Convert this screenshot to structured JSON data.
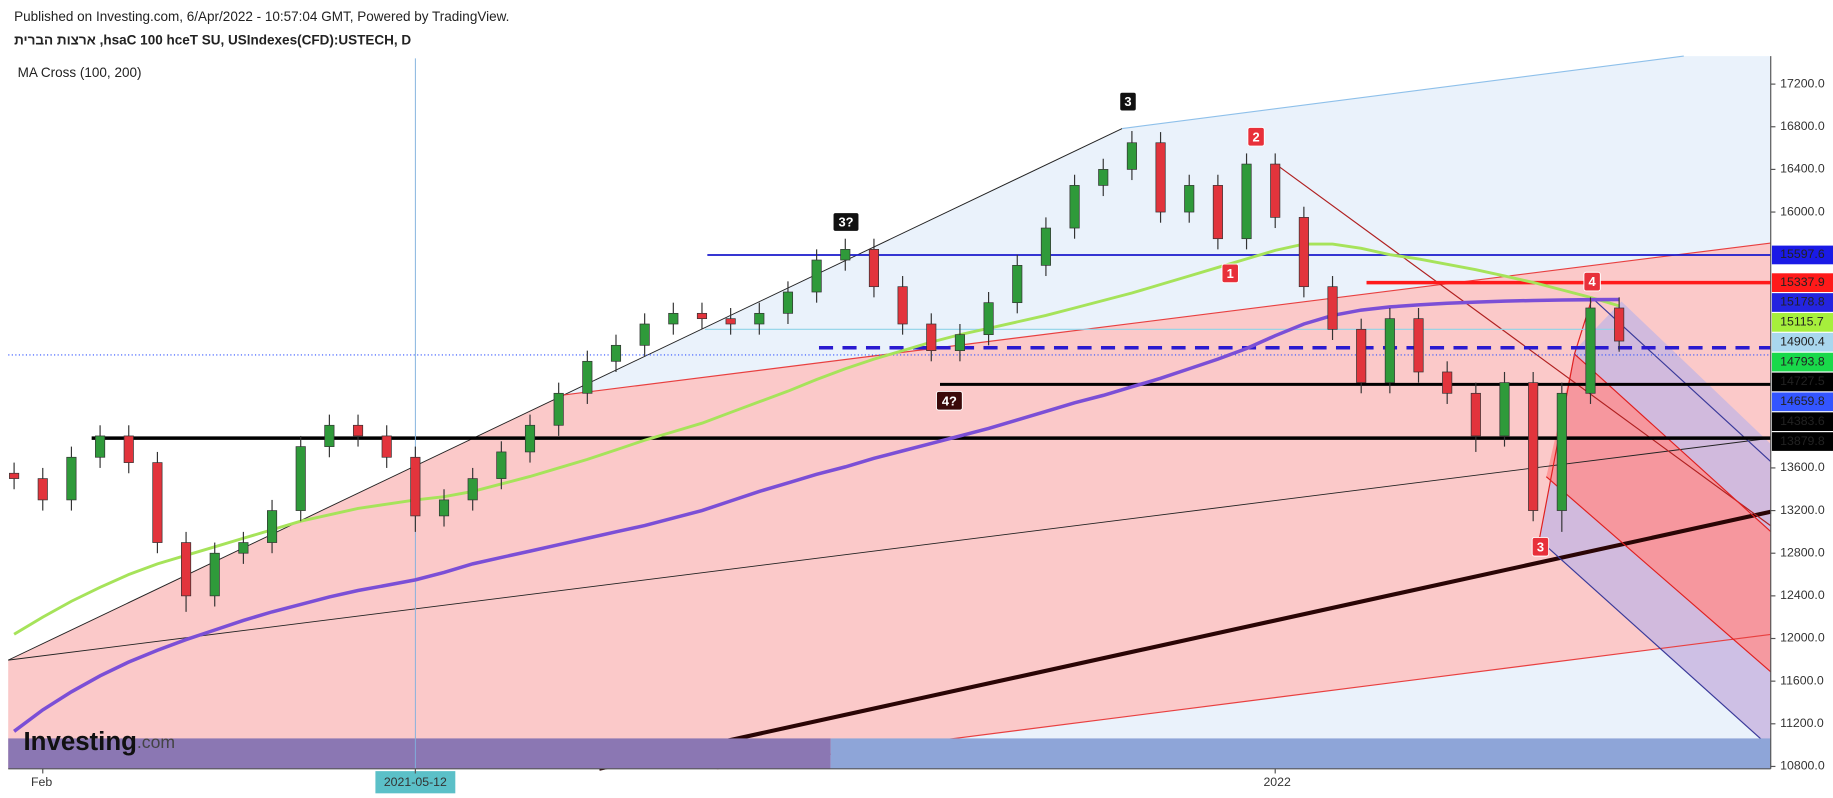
{
  "header": {
    "published": "Published on Investing.com, 6/Apr/2022 - 10:57:04 GMT, Powered by TradingView.",
    "symbol": "ארצות הברית ,hsaC 100 hceT SU, USIndexes(CFD):USTECH, D",
    "indicator": "MA Cross (100, 200)",
    "logo": "Investing",
    "logo_suffix": ".com"
  },
  "chart_data": {
    "type": "candlestick",
    "categories": [
      null,
      "Feb",
      null,
      null,
      null,
      null,
      null,
      null,
      null,
      null,
      null,
      null,
      null,
      null,
      "2021-05-12",
      null,
      null,
      null,
      null,
      null,
      null,
      null,
      null,
      null,
      null,
      null,
      null,
      null,
      null,
      null,
      null,
      null,
      null,
      null,
      null,
      null,
      null,
      null,
      null,
      null,
      null,
      null,
      null,
      null,
      "2022",
      null,
      null,
      null,
      null,
      null,
      null,
      null,
      null,
      null,
      null,
      null,
      null
    ],
    "open": [
      13550,
      13500,
      13300,
      13700,
      13900,
      13650,
      12900,
      12400,
      12800,
      12900,
      13200,
      13800,
      14000,
      13900,
      13700,
      13150,
      13300,
      13500,
      13750,
      14000,
      14300,
      14600,
      14750,
      14950,
      15050,
      15000,
      14950,
      15050,
      15250,
      15550,
      15650,
      15300,
      14950,
      14700,
      14850,
      15150,
      15500,
      15850,
      16250,
      16400,
      16650,
      16000,
      16250,
      15750,
      16450,
      15950,
      15300,
      14900,
      14400,
      15000,
      14500,
      14300,
      13900,
      14400,
      13200,
      14300,
      15100
    ],
    "high": [
      13650,
      13600,
      13800,
      14000,
      14000,
      13750,
      13000,
      12900,
      13000,
      13300,
      13900,
      14100,
      14100,
      14000,
      13800,
      13400,
      13600,
      13850,
      14100,
      14400,
      14700,
      14850,
      15050,
      15150,
      15150,
      15100,
      15150,
      15350,
      15650,
      15750,
      15750,
      15400,
      15050,
      14950,
      15250,
      15600,
      15950,
      16350,
      16500,
      16760,
      16750,
      16350,
      16350,
      16550,
      16550,
      16050,
      15400,
      15000,
      15100,
      15100,
      14600,
      14400,
      14500,
      14500,
      14400,
      15200,
      15200
    ],
    "low": [
      13400,
      13200,
      13200,
      13600,
      13550,
      12800,
      12250,
      12300,
      12700,
      12800,
      13100,
      13700,
      13800,
      13600,
      13000,
      13050,
      13200,
      13400,
      13650,
      13900,
      14200,
      14500,
      14650,
      14850,
      14900,
      14850,
      14850,
      14950,
      15150,
      15450,
      15200,
      14850,
      14600,
      14600,
      14750,
      15050,
      15400,
      15750,
      16150,
      16300,
      15900,
      15900,
      15650,
      15650,
      15850,
      15200,
      14800,
      14300,
      14300,
      14400,
      14200,
      13750,
      13800,
      13100,
      13000,
      14200,
      14690
    ],
    "close": [
      13500,
      13300,
      13700,
      13900,
      13650,
      12900,
      12400,
      12800,
      12900,
      13200,
      13800,
      14000,
      13900,
      13700,
      13150,
      13300,
      13500,
      13750,
      14000,
      14300,
      14600,
      14750,
      14950,
      15050,
      15000,
      14950,
      15050,
      15250,
      15550,
      15650,
      15300,
      14950,
      14700,
      14850,
      15150,
      15500,
      15850,
      16250,
      16400,
      16650,
      16000,
      16250,
      15750,
      16450,
      15950,
      15300,
      14900,
      14400,
      15000,
      14500,
      14300,
      13900,
      14400,
      13200,
      14300,
      15100,
      14790
    ],
    "up_color": "#2f9a3a",
    "down_color": "#e2343c",
    "series": [
      {
        "color": "#a6e35a",
        "values": [
          12040,
          12200,
          12350,
          12480,
          12600,
          12700,
          12780,
          12860,
          12940,
          13020,
          13100,
          13160,
          13220,
          13260,
          13300,
          13330,
          13380,
          13450,
          13520,
          13600,
          13680,
          13770,
          13860,
          13940,
          14020,
          14120,
          14220,
          14320,
          14430,
          14530,
          14620,
          14700,
          14780,
          14850,
          14910,
          14970,
          15030,
          15100,
          15170,
          15240,
          15320,
          15400,
          15480,
          15560,
          15640,
          15700,
          15700,
          15660,
          15600,
          15560,
          15510,
          15460,
          15400,
          15340,
          15270,
          15200,
          15120
        ]
      },
      {
        "color": "#7b4fd6",
        "values": [
          11130,
          11330,
          11500,
          11650,
          11780,
          11890,
          11990,
          12080,
          12170,
          12250,
          12320,
          12390,
          12450,
          12500,
          12550,
          12620,
          12700,
          12760,
          12820,
          12880,
          12940,
          13000,
          13060,
          13130,
          13200,
          13290,
          13380,
          13460,
          13540,
          13610,
          13690,
          13760,
          13830,
          13900,
          13970,
          14050,
          14130,
          14210,
          14280,
          14360,
          14440,
          14530,
          14620,
          14720,
          14840,
          14950,
          15030,
          15080,
          15110,
          15130,
          15145,
          15155,
          15165,
          15170,
          15175,
          15178,
          15180
        ]
      }
    ],
    "ylim": [
      10778,
      17441
    ],
    "yticks": [
      {
        "value": 10800,
        "label": "10800.0"
      },
      {
        "value": 11200,
        "label": "11200.0"
      },
      {
        "value": 11600,
        "label": "11600.0"
      },
      {
        "value": 12000,
        "label": "12000.0"
      },
      {
        "value": 12400,
        "label": "12400.0"
      },
      {
        "value": 12800,
        "label": "12800.0"
      },
      {
        "value": 13200,
        "label": "13200.0"
      },
      {
        "value": 13600,
        "label": "13600.0"
      },
      {
        "value": 16000,
        "label": "16000.0"
      },
      {
        "value": 16400,
        "label": "16400.0"
      },
      {
        "value": 16800,
        "label": "16800.0"
      },
      {
        "value": 17200,
        "label": "17200.0"
      }
    ],
    "price_labels": [
      {
        "value": 15597.6,
        "bg": "#1a1ae6",
        "fg": "#ffffff"
      },
      {
        "value": 15337.9,
        "bg": "#ff1a1a",
        "fg": "#ffffff"
      },
      {
        "value": 15178.8,
        "bg": "#2424e0",
        "fg": "#ffffff"
      },
      {
        "value": 15115.7,
        "bg": "#a6ef3c",
        "fg": "#000000"
      },
      {
        "value": 14900.4,
        "bg": "#a9d7ee",
        "fg": "#000000"
      },
      {
        "value": 14793.8,
        "bg": "#19d94a",
        "fg": "#000000"
      },
      {
        "value": 14727.5,
        "bg": "#000000",
        "fg": "#ffffff"
      },
      {
        "value": 14659.8,
        "bg": "#3355ff",
        "fg": "#ffffff"
      },
      {
        "value": 14383.6,
        "bg": "#000000",
        "fg": "#ffffff"
      },
      {
        "value": 13879.8,
        "bg": "#000000",
        "fg": "#ffffff"
      }
    ],
    "annotations": [
      {
        "text": "3?",
        "bg": "#111111"
      },
      {
        "text": "3",
        "bg": "#111111"
      },
      {
        "text": "2",
        "bg": "#e8303a"
      },
      {
        "text": "1",
        "bg": "#e8303a"
      },
      {
        "text": "4",
        "bg": "#e8303a"
      },
      {
        "text": "4?",
        "bg": "#3a0a0a"
      },
      {
        "text": "3",
        "bg": "#e8303a"
      }
    ]
  }
}
